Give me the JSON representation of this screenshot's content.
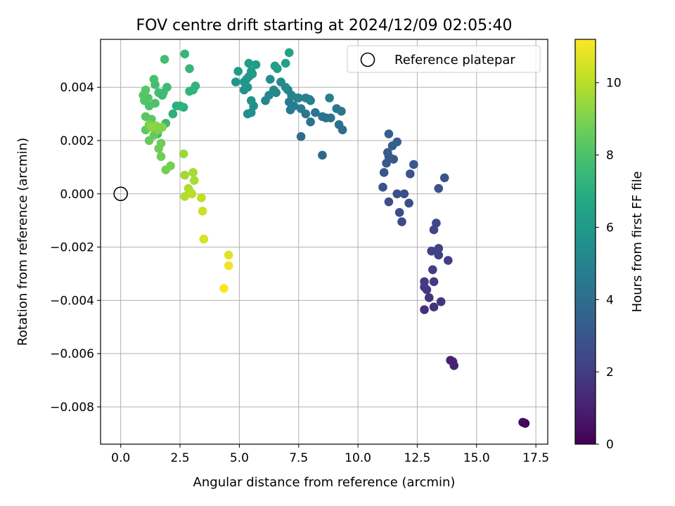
{
  "chart_data": {
    "type": "scatter",
    "title": "FOV centre drift starting at 2024/12/09 02:05:40",
    "xlabel": "Angular distance from reference (arcmin)",
    "ylabel": "Rotation from reference (arcmin)",
    "xlim": [
      -0.85,
      18.0
    ],
    "ylim": [
      -0.0094,
      0.0058
    ],
    "xticks": [
      0.0,
      2.5,
      5.0,
      7.5,
      10.0,
      12.5,
      15.0,
      17.5
    ],
    "xtick_labels": [
      "0.0",
      "2.5",
      "5.0",
      "7.5",
      "10.0",
      "12.5",
      "15.0",
      "17.5"
    ],
    "yticks": [
      -0.008,
      -0.006,
      -0.004,
      -0.002,
      0.0,
      0.002,
      0.004
    ],
    "ytick_labels": [
      "−0.008",
      "−0.006",
      "−0.004",
      "−0.002",
      "0.000",
      "0.002",
      "0.004"
    ],
    "grid": true,
    "legend": {
      "position": "top-right",
      "entries": [
        {
          "label": "Reference platepar",
          "marker": "open-circle"
        }
      ]
    },
    "reference_point": {
      "x": 0.0,
      "y": 0.0
    },
    "colorbar": {
      "label": "Hours from first FF file",
      "colormap": "viridis",
      "range": [
        0,
        11.2
      ],
      "ticks": [
        0,
        2,
        4,
        6,
        8,
        10
      ],
      "tick_labels": [
        "0",
        "2",
        "4",
        "6",
        "8",
        "10"
      ]
    },
    "points": [
      {
        "x": 17.0,
        "y": -0.0086,
        "t": 0.05
      },
      {
        "x": 17.05,
        "y": -0.00862,
        "t": 0.15
      },
      {
        "x": 16.95,
        "y": -0.00858,
        "t": 0.25
      },
      {
        "x": 13.9,
        "y": -0.00625,
        "t": 1.0
      },
      {
        "x": 14.05,
        "y": -0.00645,
        "t": 1.1
      },
      {
        "x": 14.0,
        "y": -0.0063,
        "t": 1.05
      },
      {
        "x": 12.8,
        "y": -0.00435,
        "t": 1.5
      },
      {
        "x": 13.2,
        "y": -0.00425,
        "t": 1.6
      },
      {
        "x": 13.5,
        "y": -0.00405,
        "t": 1.65
      },
      {
        "x": 13.0,
        "y": -0.0039,
        "t": 1.7
      },
      {
        "x": 12.9,
        "y": -0.0036,
        "t": 1.8
      },
      {
        "x": 12.8,
        "y": -0.0035,
        "t": 1.85
      },
      {
        "x": 13.2,
        "y": -0.0033,
        "t": 1.9
      },
      {
        "x": 12.8,
        "y": -0.0033,
        "t": 1.95
      },
      {
        "x": 13.15,
        "y": -0.00285,
        "t": 2.0
      },
      {
        "x": 13.8,
        "y": -0.0025,
        "t": 2.05
      },
      {
        "x": 13.4,
        "y": -0.0023,
        "t": 2.1
      },
      {
        "x": 13.1,
        "y": -0.00215,
        "t": 2.15
      },
      {
        "x": 13.4,
        "y": -0.00205,
        "t": 2.2
      },
      {
        "x": 13.2,
        "y": -0.00135,
        "t": 2.3
      },
      {
        "x": 13.3,
        "y": -0.0011,
        "t": 2.35
      },
      {
        "x": 11.85,
        "y": -0.00105,
        "t": 2.5
      },
      {
        "x": 11.75,
        "y": -0.0007,
        "t": 2.55
      },
      {
        "x": 12.15,
        "y": -0.00035,
        "t": 2.6
      },
      {
        "x": 11.3,
        "y": -0.0003,
        "t": 2.65
      },
      {
        "x": 11.65,
        "y": 0.0,
        "t": 2.7
      },
      {
        "x": 11.95,
        "y": 0.0,
        "t": 2.75
      },
      {
        "x": 13.4,
        "y": 0.0002,
        "t": 2.8
      },
      {
        "x": 11.05,
        "y": 0.00025,
        "t": 2.85
      },
      {
        "x": 13.65,
        "y": 0.0006,
        "t": 2.9
      },
      {
        "x": 12.2,
        "y": 0.00075,
        "t": 2.95
      },
      {
        "x": 11.1,
        "y": 0.0008,
        "t": 3.0
      },
      {
        "x": 12.35,
        "y": 0.0011,
        "t": 3.05
      },
      {
        "x": 11.2,
        "y": 0.00115,
        "t": 3.1
      },
      {
        "x": 11.5,
        "y": 0.0013,
        "t": 3.15
      },
      {
        "x": 11.3,
        "y": 0.0014,
        "t": 3.2
      },
      {
        "x": 11.25,
        "y": 0.00155,
        "t": 3.25
      },
      {
        "x": 11.45,
        "y": 0.0018,
        "t": 3.3
      },
      {
        "x": 11.65,
        "y": 0.00195,
        "t": 3.35
      },
      {
        "x": 11.3,
        "y": 0.00225,
        "t": 3.4
      },
      {
        "x": 8.5,
        "y": 0.00145,
        "t": 3.7
      },
      {
        "x": 7.6,
        "y": 0.00215,
        "t": 3.9
      },
      {
        "x": 9.35,
        "y": 0.0024,
        "t": 4.0
      },
      {
        "x": 9.2,
        "y": 0.0026,
        "t": 4.05
      },
      {
        "x": 8.0,
        "y": 0.0027,
        "t": 4.1
      },
      {
        "x": 8.65,
        "y": 0.00285,
        "t": 4.15
      },
      {
        "x": 8.85,
        "y": 0.00285,
        "t": 4.2
      },
      {
        "x": 8.5,
        "y": 0.0029,
        "t": 4.25
      },
      {
        "x": 7.8,
        "y": 0.003,
        "t": 4.3
      },
      {
        "x": 8.2,
        "y": 0.00305,
        "t": 4.35
      },
      {
        "x": 9.3,
        "y": 0.0031,
        "t": 4.4
      },
      {
        "x": 7.15,
        "y": 0.00315,
        "t": 4.45
      },
      {
        "x": 9.1,
        "y": 0.0032,
        "t": 4.5
      },
      {
        "x": 7.6,
        "y": 0.0032,
        "t": 4.55
      },
      {
        "x": 7.3,
        "y": 0.0033,
        "t": 4.6
      },
      {
        "x": 7.1,
        "y": 0.00345,
        "t": 4.65
      },
      {
        "x": 8.0,
        "y": 0.0035,
        "t": 4.7
      },
      {
        "x": 7.5,
        "y": 0.0036,
        "t": 4.75
      },
      {
        "x": 8.8,
        "y": 0.0036,
        "t": 4.8
      },
      {
        "x": 7.95,
        "y": 0.00355,
        "t": 4.85
      },
      {
        "x": 7.8,
        "y": 0.0036,
        "t": 4.9
      },
      {
        "x": 7.2,
        "y": 0.0037,
        "t": 4.95
      },
      {
        "x": 7.45,
        "y": 0.0036,
        "t": 5.0
      },
      {
        "x": 7.05,
        "y": 0.0039,
        "t": 5.05
      },
      {
        "x": 6.55,
        "y": 0.0038,
        "t": 5.1
      },
      {
        "x": 6.1,
        "y": 0.0035,
        "t": 5.15
      },
      {
        "x": 6.25,
        "y": 0.0037,
        "t": 5.2
      },
      {
        "x": 6.45,
        "y": 0.0039,
        "t": 5.25
      },
      {
        "x": 6.75,
        "y": 0.0042,
        "t": 5.3
      },
      {
        "x": 6.95,
        "y": 0.004,
        "t": 5.35
      },
      {
        "x": 6.3,
        "y": 0.0043,
        "t": 5.4
      },
      {
        "x": 5.35,
        "y": 0.003,
        "t": 5.5
      },
      {
        "x": 5.5,
        "y": 0.00305,
        "t": 5.55
      },
      {
        "x": 5.6,
        "y": 0.0033,
        "t": 5.6
      },
      {
        "x": 5.5,
        "y": 0.0035,
        "t": 5.65
      },
      {
        "x": 5.2,
        "y": 0.0039,
        "t": 5.7
      },
      {
        "x": 5.35,
        "y": 0.004,
        "t": 5.75
      },
      {
        "x": 4.85,
        "y": 0.0042,
        "t": 5.8
      },
      {
        "x": 5.2,
        "y": 0.0042,
        "t": 5.85
      },
      {
        "x": 5.3,
        "y": 0.0043,
        "t": 5.9
      },
      {
        "x": 5.4,
        "y": 0.0044,
        "t": 5.95
      },
      {
        "x": 5.55,
        "y": 0.0045,
        "t": 6.0
      },
      {
        "x": 5.5,
        "y": 0.0046,
        "t": 6.05
      },
      {
        "x": 4.95,
        "y": 0.0046,
        "t": 6.1
      },
      {
        "x": 5.7,
        "y": 0.00485,
        "t": 6.15
      },
      {
        "x": 5.4,
        "y": 0.0049,
        "t": 6.2
      },
      {
        "x": 6.5,
        "y": 0.0048,
        "t": 6.25
      },
      {
        "x": 6.6,
        "y": 0.0047,
        "t": 6.3
      },
      {
        "x": 6.95,
        "y": 0.0049,
        "t": 6.35
      },
      {
        "x": 7.1,
        "y": 0.0053,
        "t": 6.4
      },
      {
        "x": 2.35,
        "y": 0.0033,
        "t": 7.0
      },
      {
        "x": 2.65,
        "y": 0.00325,
        "t": 7.05
      },
      {
        "x": 2.2,
        "y": 0.003,
        "t": 7.1
      },
      {
        "x": 2.5,
        "y": 0.0033,
        "t": 7.15
      },
      {
        "x": 2.9,
        "y": 0.00385,
        "t": 7.2
      },
      {
        "x": 3.05,
        "y": 0.0039,
        "t": 7.25
      },
      {
        "x": 3.15,
        "y": 0.00405,
        "t": 7.3
      },
      {
        "x": 2.7,
        "y": 0.00525,
        "t": 7.35
      },
      {
        "x": 2.9,
        "y": 0.0047,
        "t": 7.4
      },
      {
        "x": 1.55,
        "y": 0.00225,
        "t": 7.5
      },
      {
        "x": 1.9,
        "y": 0.00265,
        "t": 7.55
      },
      {
        "x": 1.75,
        "y": 0.0037,
        "t": 7.6
      },
      {
        "x": 1.95,
        "y": 0.004,
        "t": 7.65
      },
      {
        "x": 1.8,
        "y": 0.0038,
        "t": 7.7
      },
      {
        "x": 1.6,
        "y": 0.0038,
        "t": 7.75
      },
      {
        "x": 1.45,
        "y": 0.0041,
        "t": 7.8
      },
      {
        "x": 1.85,
        "y": 0.00505,
        "t": 7.85
      },
      {
        "x": 1.4,
        "y": 0.0043,
        "t": 7.9
      },
      {
        "x": 1.45,
        "y": 0.0034,
        "t": 8.0
      },
      {
        "x": 1.2,
        "y": 0.0033,
        "t": 8.05
      },
      {
        "x": 1.0,
        "y": 0.0035,
        "t": 8.1
      },
      {
        "x": 1.15,
        "y": 0.0036,
        "t": 8.15
      },
      {
        "x": 0.95,
        "y": 0.0037,
        "t": 8.2
      },
      {
        "x": 1.05,
        "y": 0.0039,
        "t": 8.25
      },
      {
        "x": 1.05,
        "y": 0.0029,
        "t": 8.3
      },
      {
        "x": 1.3,
        "y": 0.0028,
        "t": 8.35
      },
      {
        "x": 1.05,
        "y": 0.0024,
        "t": 8.4
      },
      {
        "x": 1.2,
        "y": 0.002,
        "t": 8.5
      },
      {
        "x": 1.4,
        "y": 0.0022,
        "t": 8.55
      },
      {
        "x": 1.55,
        "y": 0.0025,
        "t": 8.6
      },
      {
        "x": 1.7,
        "y": 0.0019,
        "t": 8.65
      },
      {
        "x": 1.7,
        "y": 0.0014,
        "t": 8.7
      },
      {
        "x": 1.6,
        "y": 0.0017,
        "t": 8.75
      },
      {
        "x": 1.9,
        "y": 0.0009,
        "t": 8.8
      },
      {
        "x": 2.1,
        "y": 0.00105,
        "t": 8.85
      },
      {
        "x": 1.2,
        "y": 0.0026,
        "t": 8.9
      },
      {
        "x": 1.6,
        "y": 0.0024,
        "t": 9.0
      },
      {
        "x": 1.75,
        "y": 0.0025,
        "t": 9.1
      },
      {
        "x": 1.5,
        "y": 0.00255,
        "t": 9.2
      },
      {
        "x": 1.3,
        "y": 0.0025,
        "t": 9.3
      },
      {
        "x": 2.65,
        "y": 0.0015,
        "t": 9.5
      },
      {
        "x": 2.7,
        "y": 0.0007,
        "t": 9.6
      },
      {
        "x": 3.05,
        "y": 0.0008,
        "t": 9.7
      },
      {
        "x": 3.1,
        "y": 0.0005,
        "t": 9.75
      },
      {
        "x": 2.85,
        "y": 0.0002,
        "t": 9.8
      },
      {
        "x": 2.9,
        "y": 0.0001,
        "t": 9.85
      },
      {
        "x": 2.7,
        "y": -0.0001,
        "t": 9.9
      },
      {
        "x": 3.0,
        "y": 0.0,
        "t": 10.0
      },
      {
        "x": 3.4,
        "y": -0.00015,
        "t": 10.1
      },
      {
        "x": 3.45,
        "y": -0.00065,
        "t": 10.3
      },
      {
        "x": 3.5,
        "y": -0.0017,
        "t": 10.5
      },
      {
        "x": 4.55,
        "y": -0.0023,
        "t": 10.7
      },
      {
        "x": 4.55,
        "y": -0.0027,
        "t": 10.9
      },
      {
        "x": 4.35,
        "y": -0.00355,
        "t": 11.1
      }
    ]
  }
}
